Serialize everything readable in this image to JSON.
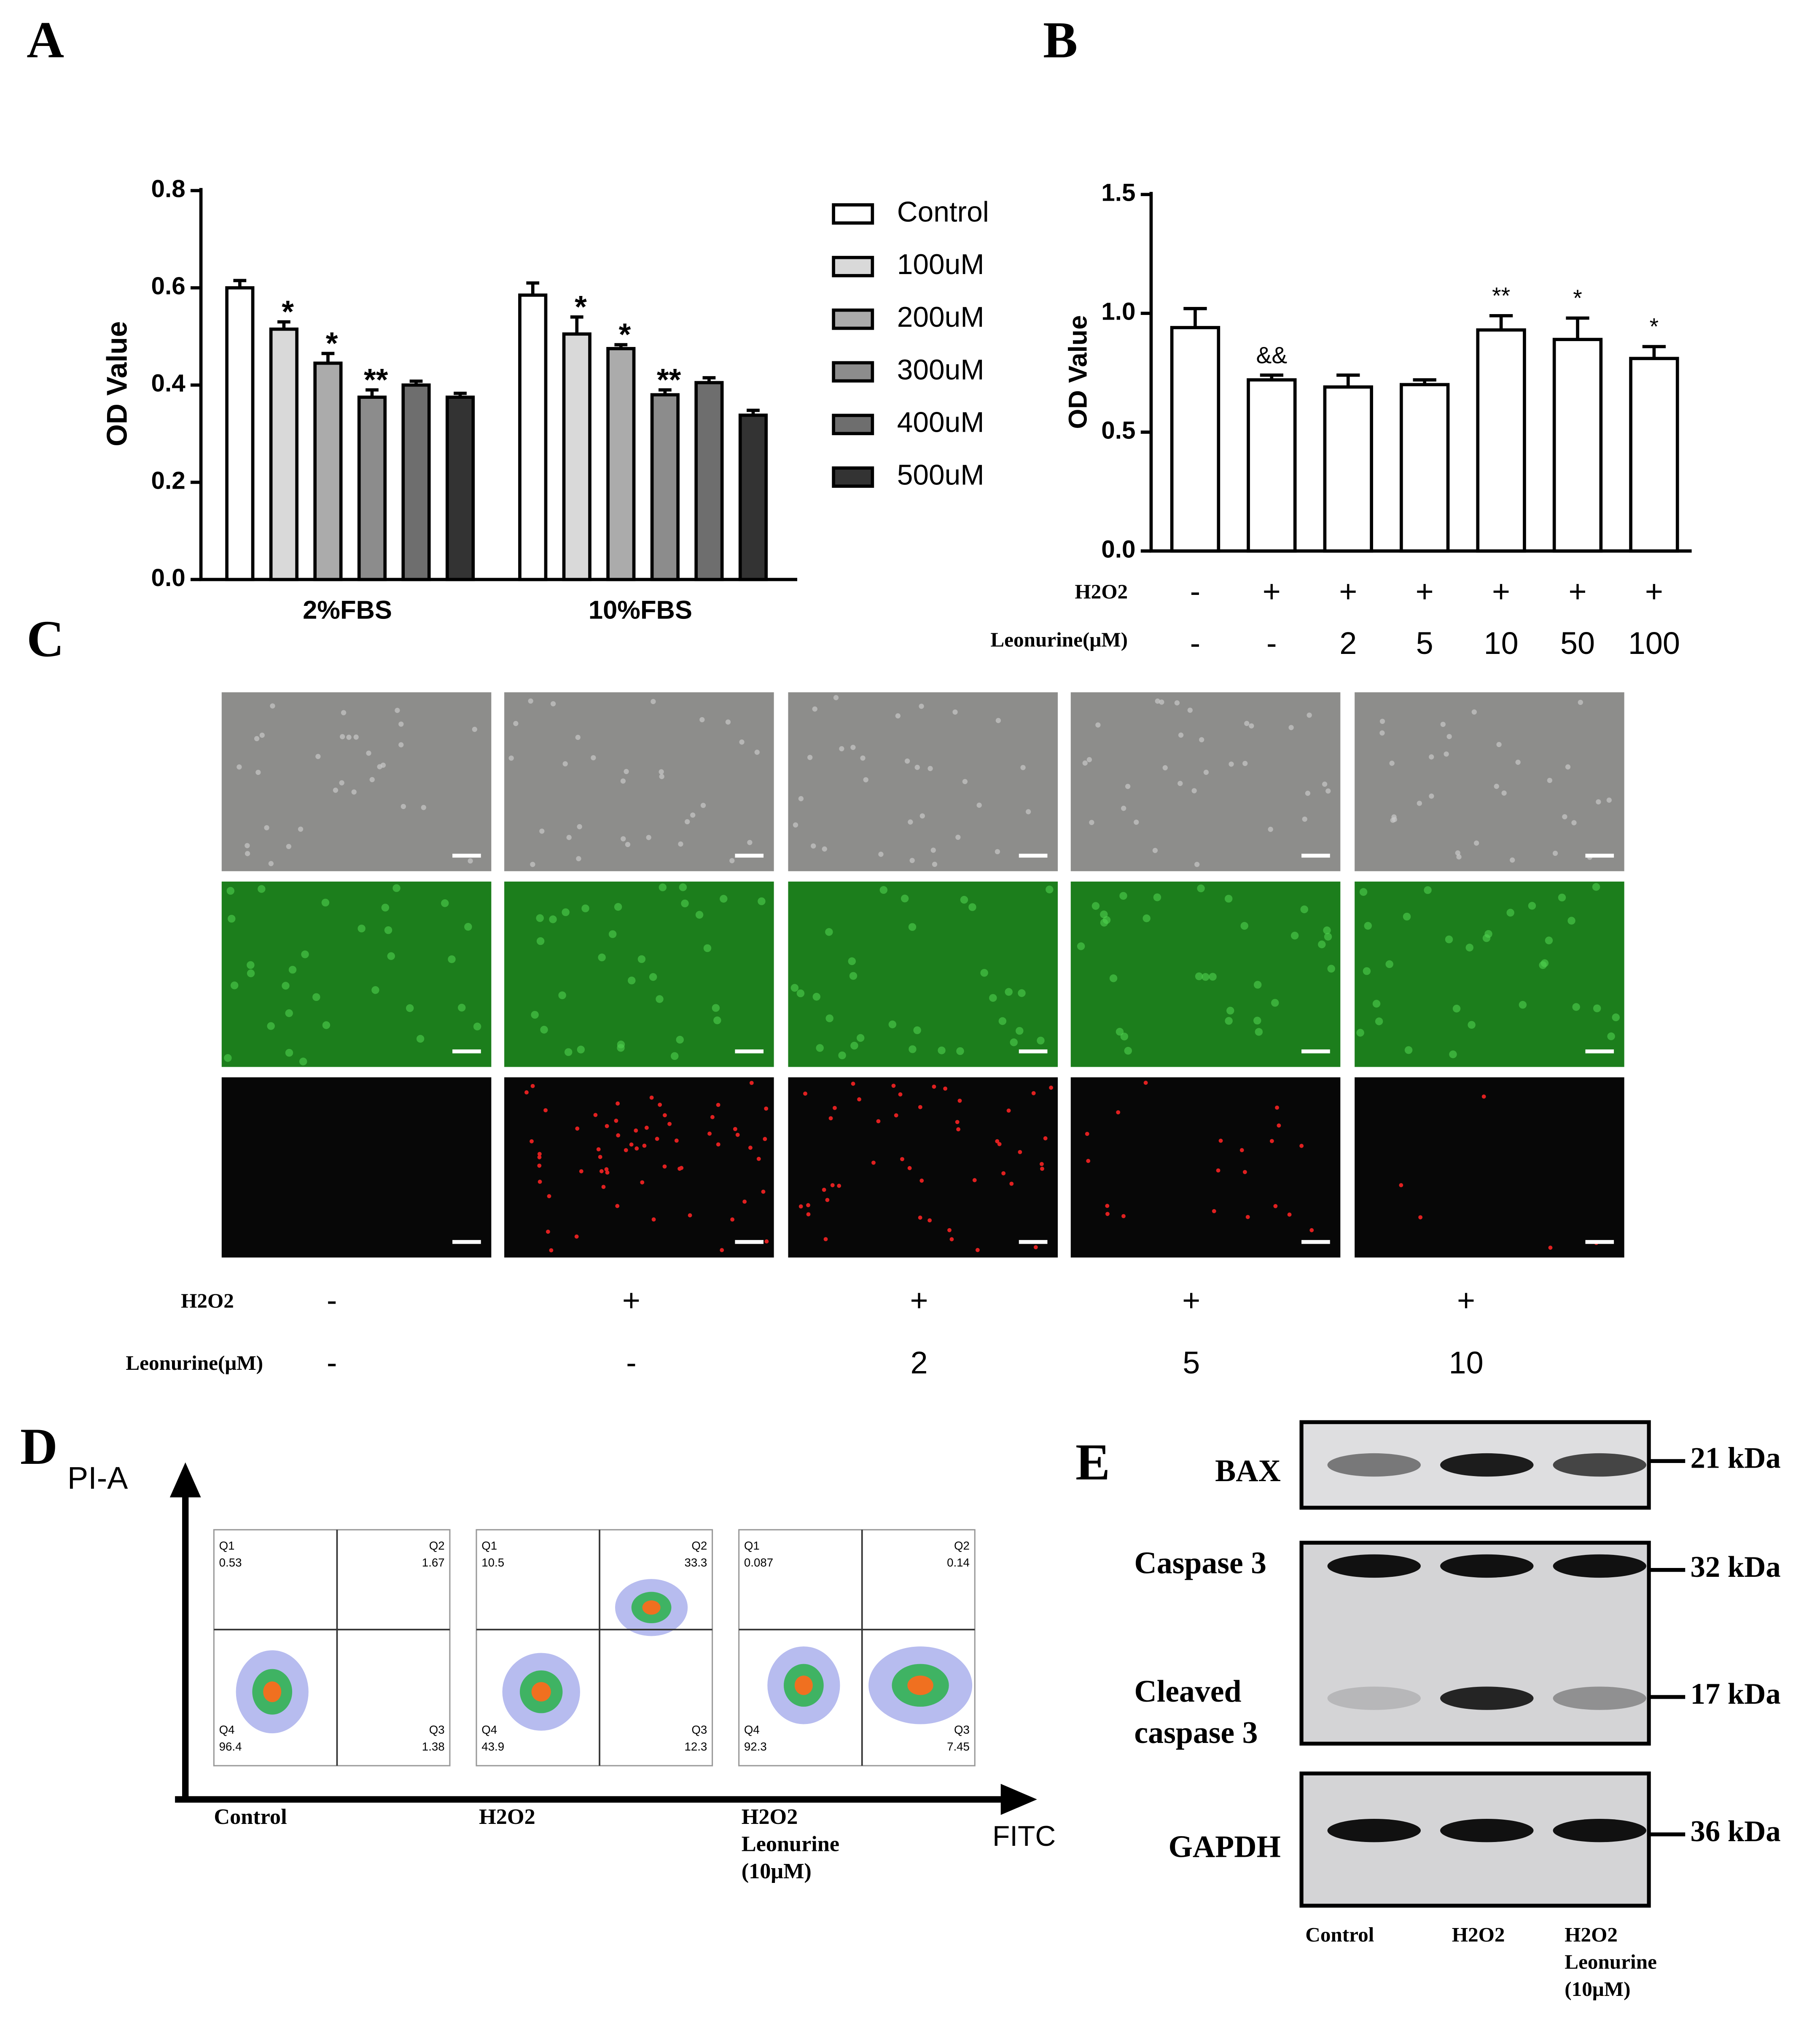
{
  "panel_labels": [
    "A",
    "B",
    "C",
    "D",
    "E"
  ],
  "chart_data": [
    {
      "type": "bar",
      "y_label": "OD Value",
      "categories": [
        "2%FBS",
        "10%FBS"
      ],
      "ylim": [
        0,
        0.8
      ],
      "yticks": [
        {
          "value": 0,
          "label": "0.0"
        },
        0.2,
        0.4,
        0.6,
        0.8
      ],
      "legend": "right",
      "series": [
        {
          "name": "Control",
          "color": "#ffffff",
          "values": [
            0.6,
            0.585
          ],
          "errors": [
            0.015,
            0.025
          ]
        },
        {
          "name": "100uM",
          "color": "#d9d9d9",
          "values": [
            0.515,
            0.505
          ],
          "errors": [
            0.015,
            0.035
          ],
          "marks": [
            "*",
            "*"
          ]
        },
        {
          "name": "200uM",
          "color": "#ababab",
          "values": [
            0.445,
            0.475
          ],
          "errors": [
            0.02,
            0.008
          ],
          "marks": [
            "*",
            "*"
          ]
        },
        {
          "name": "300uM",
          "color": "#8c8c8c",
          "values": [
            0.375,
            0.38
          ],
          "errors": [
            0.015,
            0.01
          ],
          "marks": [
            "**",
            "**"
          ]
        },
        {
          "name": "400uM",
          "color": "#6e6e6e",
          "values": [
            0.4,
            0.405
          ],
          "errors": [
            0.008,
            0.01
          ]
        },
        {
          "name": "500uM",
          "color": "#333333",
          "values": [
            0.375,
            0.338
          ],
          "errors": [
            0.008,
            0.01
          ]
        }
      ]
    },
    {
      "type": "bar",
      "y_label": "OD Value",
      "ylim": [
        0,
        1.5
      ],
      "yticks": [
        {
          "value": 0,
          "label": "0.0"
        },
        0.5,
        {
          "value": 1,
          "label": "1.0"
        },
        1.5
      ],
      "color": "#ffffff",
      "values": [
        0.94,
        0.72,
        0.69,
        0.7,
        0.93,
        0.89,
        0.81
      ],
      "errors": [
        0.08,
        0.02,
        0.05,
        0.02,
        0.06,
        0.09,
        0.05
      ],
      "marks": [
        null,
        "&&",
        null,
        null,
        "**",
        "*",
        "*"
      ],
      "treatments": [
        {
          "name": "H2O2",
          "levels": [
            "-",
            "+",
            "+",
            "+",
            "+",
            "+",
            "+"
          ]
        },
        {
          "name": "Leonurine(μM)",
          "levels": [
            "-",
            "-",
            "2",
            "5",
            "10",
            "50",
            "100"
          ]
        }
      ]
    }
  ],
  "panel_c": {
    "treatments": [
      {
        "name": "H2O2",
        "levels": [
          "-",
          "+",
          "+",
          "+",
          "+"
        ]
      },
      {
        "name": "Leonurine(μM)",
        "levels": [
          "-",
          "-",
          "2",
          "5",
          "10"
        ]
      }
    ]
  },
  "panel_d": {
    "y_axis": "PI-A",
    "x_axis": "FITC",
    "quadrant_names": [
      "Q1",
      "Q2",
      "Q3",
      "Q4"
    ],
    "samples": [
      {
        "label": [
          "Control"
        ],
        "quadrants": [
          0.53,
          1.67,
          1.38,
          96.4
        ]
      },
      {
        "label": [
          "H2O2"
        ],
        "quadrants": [
          10.5,
          33.3,
          12.3,
          43.9
        ]
      },
      {
        "label": [
          "H2O2",
          "Leonurine",
          "(10μM)"
        ],
        "quadrants": [
          0.087,
          0.14,
          7.45,
          92.3
        ]
      }
    ]
  },
  "panel_e": {
    "proteins": [
      {
        "label": [
          "BAX"
        ],
        "size": "21 kDa"
      },
      {
        "label": [
          "Caspase 3"
        ],
        "size": "32 kDa"
      },
      {
        "label": [
          "Cleaved",
          "caspase 3"
        ],
        "size": "17 kDa"
      },
      {
        "label": [
          "GAPDH"
        ],
        "size": "36 kDa"
      }
    ],
    "lanes": [
      [
        "Control"
      ],
      [
        "H2O2"
      ],
      [
        "H2O2",
        "Leonurine",
        "(10μM)"
      ]
    ]
  }
}
